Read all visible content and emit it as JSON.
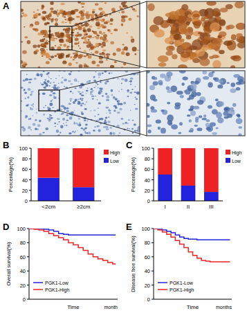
{
  "image_panel": {
    "label": "A"
  },
  "chart_data": [
    {
      "type": "bar",
      "title": "B",
      "y_label": "Percentage(%)",
      "categories": [
        "<2cm",
        "≥2cm"
      ],
      "series": [
        {
          "name": "Low",
          "color": "#2323dd",
          "values": [
            44,
            26
          ]
        },
        {
          "name": "High",
          "color": "#ee2222",
          "values": [
            56,
            74
          ]
        }
      ],
      "stacked": true,
      "ylim": [
        0,
        100
      ],
      "yticks": [
        0,
        20,
        40,
        60,
        80,
        100
      ],
      "grid": false,
      "legend": "right",
      "tick_labels": true
    },
    {
      "type": "bar",
      "title": "C",
      "y_label": "Percentage(%)",
      "categories": [
        "I",
        "II",
        "III"
      ],
      "series": [
        {
          "name": "Low",
          "color": "#2323dd",
          "values": [
            50,
            29,
            17
          ]
        },
        {
          "name": "High",
          "color": "#ee2222",
          "values": [
            50,
            71,
            83
          ]
        }
      ],
      "stacked": true,
      "ylim": [
        0,
        100
      ],
      "yticks": [
        0,
        20,
        40,
        60,
        80,
        100
      ],
      "grid": false,
      "legend": "right",
      "tick_labels": true
    },
    {
      "type": "line",
      "title": "D",
      "y_label": "Overall survival(%)",
      "x_label": "Time",
      "annotations": [
        "month"
      ],
      "series": [
        {
          "name": "PGK1-Low",
          "color": "#2323dd",
          "line_style": "step",
          "x": [
            0,
            10,
            15,
            20,
            25,
            30,
            35,
            40,
            60,
            88
          ],
          "values": [
            100,
            100,
            99,
            98,
            96,
            93,
            92,
            91,
            91,
            91
          ]
        },
        {
          "name": "PGK1-High",
          "color": "#ee2222",
          "line_style": "step",
          "x": [
            0,
            5,
            10,
            15,
            20,
            25,
            30,
            35,
            40,
            45,
            50,
            55,
            60,
            65,
            70,
            75,
            80,
            85,
            88
          ],
          "values": [
            100,
            99,
            98,
            96,
            93,
            90,
            87,
            84,
            80,
            77,
            73,
            69,
            64,
            60,
            57,
            55,
            52,
            50,
            50
          ]
        }
      ],
      "xlim": [
        0,
        90
      ],
      "ylim": [
        0,
        100
      ],
      "yticks": [
        0,
        20,
        40,
        60,
        80,
        100
      ],
      "grid": false,
      "legend": "lower left",
      "tick_labels": "y"
    },
    {
      "type": "line",
      "title": "E",
      "y_label": "Disease free survival(%)",
      "x_label": "Time",
      "annotations": [
        "months"
      ],
      "series": [
        {
          "name": "PGK1-Low",
          "color": "#2323dd",
          "line_style": "step",
          "x": [
            0,
            5,
            10,
            15,
            20,
            25,
            30,
            35,
            40,
            50,
            60,
            88
          ],
          "values": [
            100,
            99,
            98,
            96,
            94,
            91,
            88,
            86,
            85,
            84,
            84,
            84
          ]
        },
        {
          "name": "PGK1-High",
          "color": "#ee2222",
          "line_style": "step",
          "x": [
            0,
            5,
            10,
            15,
            20,
            25,
            30,
            35,
            40,
            45,
            50,
            55,
            60,
            65,
            70,
            88
          ],
          "values": [
            100,
            98,
            95,
            92,
            88,
            83,
            78,
            73,
            67,
            62,
            58,
            55,
            54,
            53,
            53,
            53
          ]
        }
      ],
      "xlim": [
        0,
        90
      ],
      "ylim": [
        0,
        100
      ],
      "yticks": [
        0,
        20,
        40,
        60,
        80,
        100
      ],
      "grid": false,
      "legend": "lower left",
      "tick_labels": "y"
    }
  ]
}
